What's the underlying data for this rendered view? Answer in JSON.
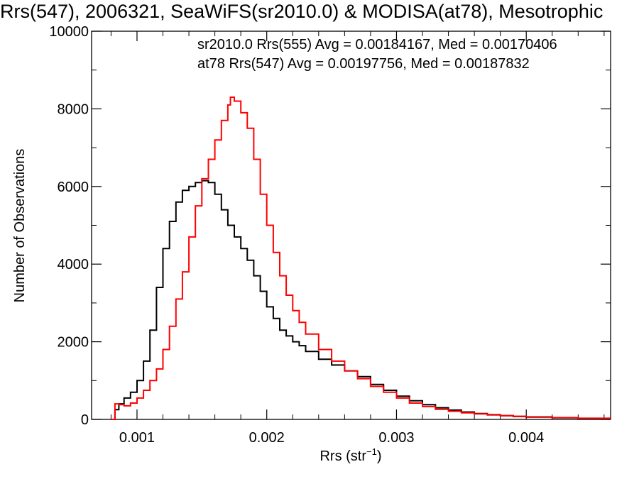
{
  "chart_data": {
    "type": "line",
    "title": "Rrs(547), 2006321, SeaWiFS(sr2010.0) & MODISA(at78), Mesotrophic",
    "xlabel": "Rrs (str",
    "xlabel_sup": "−1",
    "xlabel_close": ")",
    "ylabel": "Number of Observations",
    "xlim": [
      0.00065,
      0.00465
    ],
    "ylim": [
      0,
      10000
    ],
    "xticks": [
      0.001,
      0.002,
      0.003,
      0.004
    ],
    "xtick_labels": [
      "0.001",
      "0.002",
      "0.003",
      "0.004"
    ],
    "yticks": [
      0,
      2000,
      4000,
      6000,
      8000,
      10000
    ],
    "ytick_labels": [
      "0",
      "2000",
      "4000",
      "6000",
      "8000",
      "10000"
    ],
    "grid": false,
    "legend_position": "top-right",
    "series": [
      {
        "name": "sr2010.0 Rrs(555) Avg = 0.00184167, Med = 0.00170406",
        "color": "#000000",
        "x": [
          0.0008,
          0.00083,
          0.00086,
          0.0009,
          0.00095,
          0.001,
          0.00105,
          0.0011,
          0.00115,
          0.0012,
          0.00125,
          0.0013,
          0.00135,
          0.0014,
          0.00145,
          0.0015,
          0.00155,
          0.0016,
          0.00165,
          0.0017,
          0.00175,
          0.0018,
          0.00185,
          0.0019,
          0.00195,
          0.002,
          0.00205,
          0.0021,
          0.00215,
          0.0022,
          0.00225,
          0.0023,
          0.0024,
          0.0025,
          0.0026,
          0.0027,
          0.0028,
          0.0029,
          0.003,
          0.0031,
          0.0032,
          0.0033,
          0.0034,
          0.0035,
          0.0036,
          0.0037,
          0.0038,
          0.0039,
          0.004,
          0.0042,
          0.0044,
          0.00465
        ],
        "y": [
          0,
          250,
          400,
          550,
          700,
          1000,
          1500,
          2300,
          3400,
          4400,
          5100,
          5600,
          5900,
          6000,
          6100,
          6150,
          6100,
          5800,
          5400,
          5000,
          4700,
          4400,
          4100,
          3700,
          3300,
          2900,
          2600,
          2300,
          2150,
          2000,
          1900,
          1750,
          1550,
          1400,
          1250,
          1100,
          900,
          750,
          600,
          480,
          380,
          300,
          240,
          190,
          150,
          120,
          95,
          75,
          60,
          40,
          25,
          10
        ]
      },
      {
        "name": "at78 Rrs(547) Avg = 0.00197756, Med = 0.00187832",
        "color": "#ff0000",
        "x": [
          0.0008,
          0.00083,
          0.00086,
          0.0009,
          0.00095,
          0.001,
          0.00105,
          0.0011,
          0.00115,
          0.0012,
          0.00125,
          0.0013,
          0.00135,
          0.0014,
          0.00145,
          0.0015,
          0.00155,
          0.0016,
          0.00165,
          0.0017,
          0.00172,
          0.00175,
          0.0018,
          0.00185,
          0.0019,
          0.00195,
          0.002,
          0.00205,
          0.0021,
          0.00215,
          0.0022,
          0.00225,
          0.0023,
          0.0024,
          0.0025,
          0.0026,
          0.0027,
          0.0028,
          0.0029,
          0.003,
          0.0031,
          0.0032,
          0.0033,
          0.0034,
          0.0035,
          0.0036,
          0.0037,
          0.0038,
          0.0039,
          0.004,
          0.0042,
          0.0044,
          0.00465
        ],
        "y": [
          0,
          400,
          380,
          350,
          420,
          550,
          750,
          1000,
          1300,
          1800,
          2400,
          3100,
          3800,
          4700,
          5500,
          6200,
          6700,
          7200,
          7700,
          8100,
          8300,
          8200,
          7900,
          7500,
          6700,
          5800,
          5000,
          4300,
          3700,
          3200,
          2800,
          2500,
          2200,
          1800,
          1500,
          1250,
          1050,
          850,
          700,
          550,
          420,
          330,
          260,
          210,
          170,
          140,
          115,
          95,
          80,
          65,
          45,
          30,
          15
        ]
      }
    ]
  }
}
